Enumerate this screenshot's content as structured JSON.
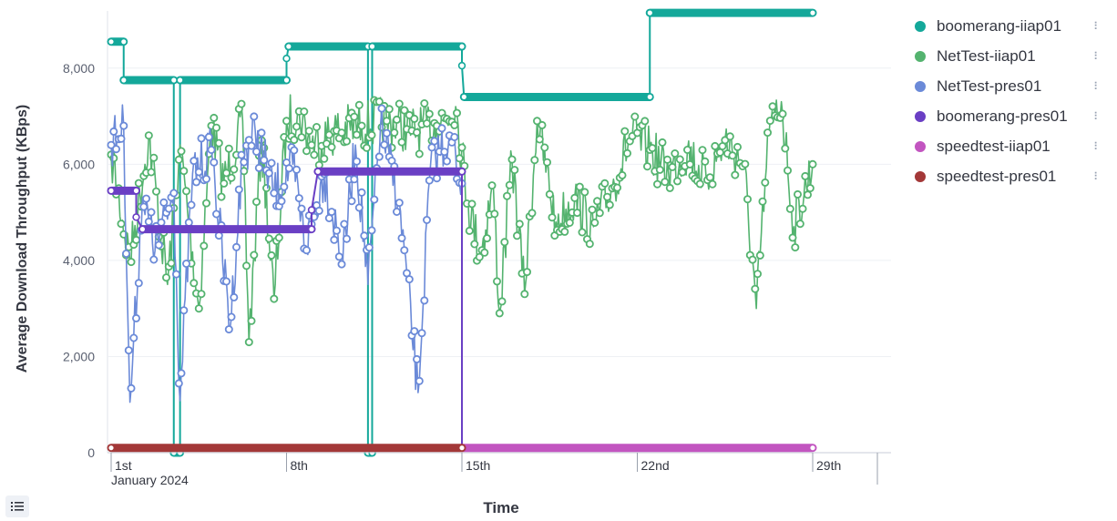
{
  "chart_data": {
    "type": "line",
    "xlabel": "Time",
    "ylabel": "Average Download Throughput (KBps)",
    "x_ticks": [
      "1st",
      "8th",
      "15th",
      "22nd",
      "29th"
    ],
    "x_sub_label": "January 2024",
    "x_range": [
      "2024-01-01",
      "2024-01-29"
    ],
    "ylim": [
      0,
      9000
    ],
    "y_ticks": [
      0,
      2000,
      4000,
      6000,
      8000
    ],
    "y_tick_labels": [
      "0",
      "2,000",
      "4,000",
      "6,000",
      "8,000"
    ],
    "legend_position": "right",
    "series": [
      {
        "name": "boomerang-iiap01",
        "color": "#14a89a",
        "style": "step",
        "points": [
          [
            "2024-01-01T00:00",
            8550
          ],
          [
            "2024-01-01T12:00",
            8550
          ],
          [
            "2024-01-01T12:00",
            7750
          ],
          [
            "2024-01-03T12:00",
            7750
          ],
          [
            "2024-01-03T12:00",
            0
          ],
          [
            "2024-01-03T18:00",
            0
          ],
          [
            "2024-01-03T18:00",
            7750
          ],
          [
            "2024-01-08T00:00",
            7750
          ],
          [
            "2024-01-08T00:00",
            8200
          ],
          [
            "2024-01-08T02:00",
            8450
          ],
          [
            "2024-01-11T06:00",
            8450
          ],
          [
            "2024-01-11T06:00",
            0
          ],
          [
            "2024-01-11T10:00",
            0
          ],
          [
            "2024-01-11T10:00",
            8450
          ],
          [
            "2024-01-15T00:00",
            8450
          ],
          [
            "2024-01-15T00:00",
            8050
          ],
          [
            "2024-01-15T02:00",
            7400
          ],
          [
            "2024-01-22T12:00",
            7400
          ],
          [
            "2024-01-22T12:00",
            9150
          ],
          [
            "2024-01-29T00:00",
            9150
          ]
        ]
      },
      {
        "name": "NetTest-iiap01",
        "color": "#54b36f",
        "style": "noisy",
        "points": [
          [
            "2024-01-01T00:00",
            6200
          ],
          [
            "2024-01-01T18:00",
            4000
          ],
          [
            "2024-01-02T12:00",
            6600
          ],
          [
            "2024-01-03T06:00",
            3500
          ],
          [
            "2024-01-03T18:00",
            6400
          ],
          [
            "2024-01-04T12:00",
            3000
          ],
          [
            "2024-01-05T00:00",
            6800
          ],
          [
            "2024-01-05T12:00",
            5600
          ],
          [
            "2024-01-06T06:00",
            6900
          ],
          [
            "2024-01-06T12:00",
            2300
          ],
          [
            "2024-01-07T00:00",
            6500
          ],
          [
            "2024-01-07T12:00",
            3200
          ],
          [
            "2024-01-08T00:00",
            6900
          ],
          [
            "2024-01-08T12:00",
            7100
          ],
          [
            "2024-01-09T00:00",
            6400
          ],
          [
            "2024-01-10T00:00",
            6700
          ],
          [
            "2024-01-11T00:00",
            6800
          ],
          [
            "2024-01-12T00:00",
            6900
          ],
          [
            "2024-01-13T00:00",
            6700
          ],
          [
            "2024-01-14T00:00",
            6800
          ],
          [
            "2024-01-14T18:00",
            7200
          ],
          [
            "2024-01-15T06:00",
            5200
          ],
          [
            "2024-01-15T18:00",
            4100
          ],
          [
            "2024-01-16T06:00",
            5600
          ],
          [
            "2024-01-16T12:00",
            2900
          ],
          [
            "2024-01-17T00:00",
            6100
          ],
          [
            "2024-01-17T12:00",
            3300
          ],
          [
            "2024-01-18T00:00",
            6900
          ],
          [
            "2024-01-18T18:00",
            4800
          ],
          [
            "2024-01-19T12:00",
            5300
          ],
          [
            "2024-01-20T06:00",
            4700
          ],
          [
            "2024-01-21T00:00",
            5500
          ],
          [
            "2024-01-21T18:00",
            6600
          ],
          [
            "2024-01-22T12:00",
            6300
          ],
          [
            "2024-01-23T06:00",
            5800
          ],
          [
            "2024-01-24T00:00",
            6300
          ],
          [
            "2024-01-24T18:00",
            5700
          ],
          [
            "2024-01-25T12:00",
            6500
          ],
          [
            "2024-01-26T06:00",
            6000
          ],
          [
            "2024-01-26T18:00",
            3000
          ],
          [
            "2024-01-27T06:00",
            6600
          ],
          [
            "2024-01-27T18:00",
            7300
          ],
          [
            "2024-01-28T06:00",
            4700
          ],
          [
            "2024-01-29T00:00",
            6000
          ]
        ]
      },
      {
        "name": "NetTest-pres01",
        "color": "#6b8ad8",
        "style": "noisy",
        "points": [
          [
            "2024-01-01T00:00",
            6400
          ],
          [
            "2024-01-01T12:00",
            6800
          ],
          [
            "2024-01-01T18:00",
            1050
          ],
          [
            "2024-01-02T06:00",
            5300
          ],
          [
            "2024-01-02T18:00",
            4200
          ],
          [
            "2024-01-03T12:00",
            5400
          ],
          [
            "2024-01-03T18:00",
            1080
          ],
          [
            "2024-01-04T06:00",
            5800
          ],
          [
            "2024-01-05T00:00",
            6300
          ],
          [
            "2024-01-05T18:00",
            2600
          ],
          [
            "2024-01-06T06:00",
            6200
          ],
          [
            "2024-01-06T18:00",
            6700
          ],
          [
            "2024-01-07T12:00",
            5400
          ],
          [
            "2024-01-08T06:00",
            6000
          ],
          [
            "2024-01-08T18:00",
            4300
          ],
          [
            "2024-01-09T12:00",
            5800
          ],
          [
            "2024-01-10T06:00",
            4000
          ],
          [
            "2024-01-10T18:00",
            6400
          ],
          [
            "2024-01-11T06:00",
            3500
          ],
          [
            "2024-01-11T18:00",
            6800
          ],
          [
            "2024-01-12T12:00",
            5200
          ],
          [
            "2024-01-13T06:00",
            1250
          ],
          [
            "2024-01-13T18:00",
            6000
          ],
          [
            "2024-01-14T12:00",
            6600
          ],
          [
            "2024-01-15T00:00",
            5600
          ]
        ]
      },
      {
        "name": "boomerang-pres01",
        "color": "#6a3fc4",
        "style": "step",
        "points": [
          [
            "2024-01-01T00:00",
            5450
          ],
          [
            "2024-01-02T00:00",
            5450
          ],
          [
            "2024-01-02T00:00",
            4900
          ],
          [
            "2024-01-02T06:00",
            4650
          ],
          [
            "2024-01-09T00:00",
            4650
          ],
          [
            "2024-01-09T00:00",
            5050
          ],
          [
            "2024-01-09T06:00",
            5850
          ],
          [
            "2024-01-15T00:00",
            5850
          ],
          [
            "2024-01-15T00:00",
            100
          ]
        ]
      },
      {
        "name": "speedtest-iiap01",
        "color": "#c255c0",
        "style": "step",
        "points": [
          [
            "2024-01-15T00:00",
            100
          ],
          [
            "2024-01-29T00:00",
            100
          ]
        ]
      },
      {
        "name": "speedtest-pres01",
        "color": "#a33838",
        "style": "step",
        "points": [
          [
            "2024-01-01T00:00",
            100
          ],
          [
            "2024-01-15T00:00",
            100
          ]
        ]
      }
    ]
  },
  "icons": {
    "legend_list_toggle": "list-icon",
    "legend_series_menu": "vertical-dots-icon"
  }
}
